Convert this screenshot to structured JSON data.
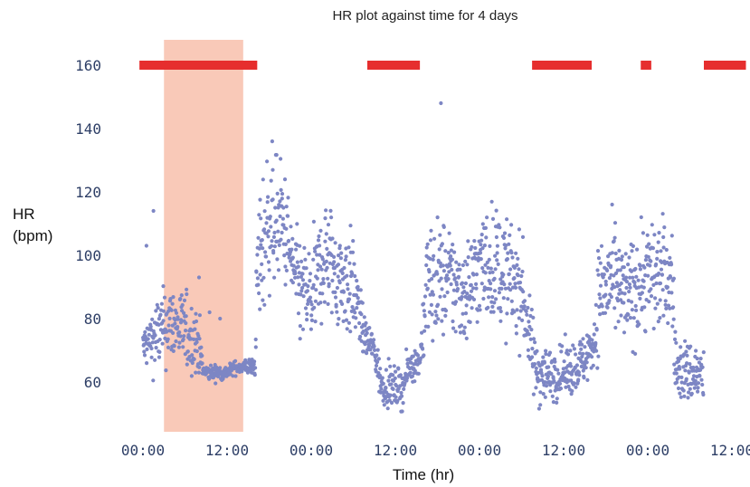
{
  "chart_data": {
    "type": "scatter",
    "title": "HR plot against time for 4 days",
    "xlabel": "Time (hr)",
    "ylabel_line1": "HR",
    "ylabel_line2": "(bpm)",
    "x_unit": "hours since first 00:00 tick",
    "xlim": [
      -3,
      76
    ],
    "ylim": [
      45,
      168
    ],
    "x_ticks": [
      {
        "x": 0,
        "label": "00:00"
      },
      {
        "x": 12,
        "label": "12:00"
      },
      {
        "x": 24,
        "label": "00:00"
      },
      {
        "x": 36,
        "label": "12:00"
      },
      {
        "x": 48,
        "label": "00:00"
      },
      {
        "x": 60,
        "label": "12:00"
      },
      {
        "x": 72,
        "label": "00:00"
      },
      {
        "x": 84,
        "label": "12:00"
      }
    ],
    "y_ticks": [
      60,
      80,
      100,
      120,
      140,
      160
    ],
    "grid": false,
    "legend": "none",
    "marker_color": "#7d86c4",
    "highlight_color": "#f9c9b8",
    "bar_color": "#e62e2e",
    "highlight_region": {
      "x_start": 3,
      "x_end": 14.3
    },
    "sleep_bars": {
      "y": 160,
      "segments": [
        [
          -0.5,
          16.3
        ],
        [
          32,
          39.5
        ],
        [
          55.5,
          64
        ],
        [
          71,
          72.5
        ],
        [
          80,
          86
        ]
      ]
    },
    "outliers": [
      [
        42.5,
        148
      ],
      [
        8,
        93
      ],
      [
        9.5,
        82
      ],
      [
        11,
        80
      ],
      [
        1.5,
        114
      ],
      [
        0.5,
        103
      ]
    ],
    "hr_profile": [
      [
        0,
        71,
        3
      ],
      [
        2,
        75,
        6
      ],
      [
        4,
        79,
        6
      ],
      [
        6,
        76,
        6
      ],
      [
        8,
        72,
        5
      ],
      [
        8.6,
        63,
        1.2
      ],
      [
        12,
        63,
        1.2
      ],
      [
        13,
        64.5,
        1
      ],
      [
        16,
        65,
        1.5
      ],
      [
        16.3,
        95,
        12
      ],
      [
        18,
        112,
        11
      ],
      [
        20,
        110,
        9
      ],
      [
        22,
        90,
        8
      ],
      [
        24,
        86,
        8
      ],
      [
        26,
        100,
        9
      ],
      [
        28,
        93,
        9
      ],
      [
        30,
        90,
        8
      ],
      [
        31.5,
        75,
        3
      ],
      [
        33,
        70,
        3
      ],
      [
        34,
        59,
        3
      ],
      [
        37,
        58,
        3
      ],
      [
        38,
        65,
        3
      ],
      [
        39.5,
        67,
        2
      ],
      [
        40.5,
        90,
        10
      ],
      [
        43,
        93,
        9
      ],
      [
        46,
        88,
        8
      ],
      [
        48,
        96,
        9
      ],
      [
        50,
        98,
        9
      ],
      [
        52,
        93,
        9
      ],
      [
        54,
        90,
        8
      ],
      [
        55,
        76,
        6
      ],
      [
        56,
        64,
        6
      ],
      [
        58,
        62,
        4
      ],
      [
        61,
        64,
        4
      ],
      [
        63,
        67,
        4
      ],
      [
        64.5,
        74,
        5
      ],
      [
        65,
        88,
        9
      ],
      [
        67,
        92,
        8
      ],
      [
        69,
        86,
        8
      ],
      [
        71,
        93,
        9
      ],
      [
        73,
        94,
        9
      ],
      [
        75.5,
        93,
        8
      ],
      [
        76,
        64,
        5
      ],
      [
        80,
        62,
        5
      ]
    ]
  }
}
